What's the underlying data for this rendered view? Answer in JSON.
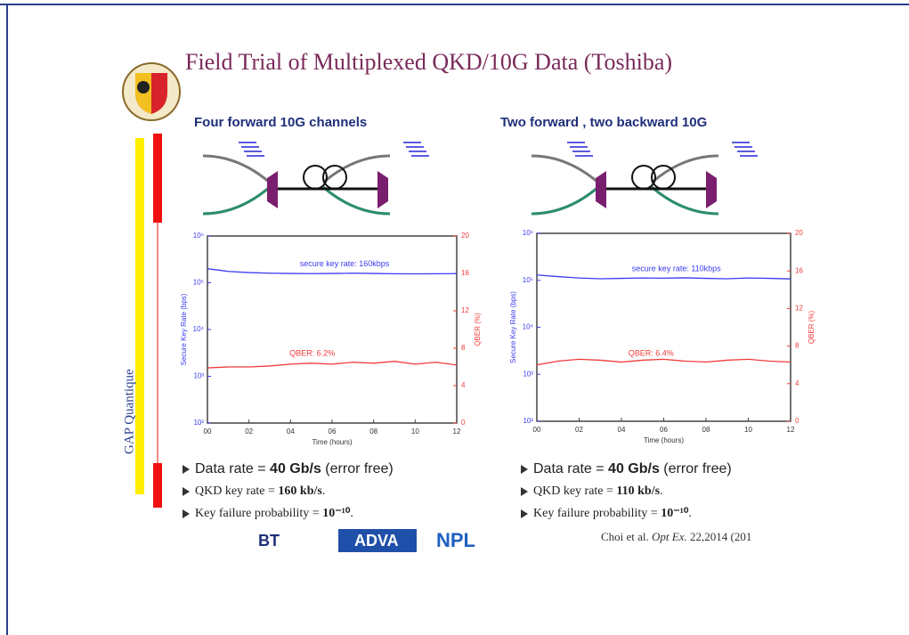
{
  "title": "Field Trial of Multiplexed QKD/10G Data (Toshiba)",
  "side_label": "GAP Quantique",
  "panels": [
    {
      "heading": "Four forward 10G channels",
      "bullets": [
        [
          {
            "text": "Data rate = "
          },
          {
            "text": "40 Gb/s",
            "bold": true
          },
          {
            "text": " (error free)"
          }
        ],
        [
          {
            "text": "QKD key rate = "
          },
          {
            "text": "160 kb/s",
            "bold": true
          },
          {
            "text": "."
          }
        ],
        [
          {
            "text": "Key failure probability = "
          },
          {
            "text": "10⁻¹⁰",
            "bold": true
          },
          {
            "text": "."
          }
        ]
      ]
    },
    {
      "heading": "Two forward , two backward 10G",
      "bullets": [
        [
          {
            "text": "Data rate = "
          },
          {
            "text": "40 Gb/s",
            "bold": true
          },
          {
            "text": " (error free)"
          }
        ],
        [
          {
            "text": "QKD key rate = "
          },
          {
            "text": "110 kb/s",
            "bold": true
          },
          {
            "text": "."
          }
        ],
        [
          {
            "text": "Key failure probability = "
          },
          {
            "text": "10⁻¹⁰",
            "bold": true
          },
          {
            "text": "."
          }
        ]
      ]
    }
  ],
  "logos": [
    "BT",
    "ADVA",
    "NPL"
  ],
  "citation": [
    {
      "text": "Choi et al. "
    },
    {
      "text": "Opt Ex.",
      "italic": true
    },
    {
      "text": " 22,2014 (201"
    }
  ],
  "chart_data": [
    {
      "type": "line",
      "xlabel": "Time (hours)",
      "ylabel": "Secure Key Rate (bps)",
      "y2label": "QBER (%)",
      "x": [
        0,
        1,
        2,
        3,
        4,
        5,
        6,
        7,
        8,
        9,
        10,
        11,
        12
      ],
      "series": [
        {
          "color": "#3b3bf0",
          "values": [
            200000,
            175000,
            165000,
            160000,
            158000,
            157000,
            158000,
            160000,
            158000,
            156000,
            155000,
            156000,
            157000
          ]
        },
        {
          "color": "#f03b3b",
          "axis": "y2",
          "values": [
            5.9,
            6.0,
            6.0,
            6.1,
            6.3,
            6.4,
            6.3,
            6.5,
            6.4,
            6.6,
            6.3,
            6.5,
            6.2
          ]
        }
      ],
      "xlim": [
        0,
        12
      ],
      "xticks": [
        {
          "value": 0,
          "label": "00"
        },
        {
          "value": 2,
          "label": "02"
        },
        {
          "value": 4,
          "label": "04"
        },
        {
          "value": 6,
          "label": "06"
        },
        {
          "value": 8,
          "label": "08"
        },
        10,
        12
      ],
      "ylim": [
        100,
        1000000
      ],
      "ylog": true,
      "yticks": [
        {
          "value": 100,
          "label": "10²"
        },
        {
          "value": 1000,
          "label": "10³"
        },
        {
          "value": 10000,
          "label": "10⁴"
        },
        {
          "value": 100000,
          "label": "10⁵"
        },
        {
          "value": 1000000,
          "label": "10⁶"
        }
      ],
      "y2lim": [
        0,
        20
      ],
      "y2ticks": [
        0,
        4,
        8,
        12,
        16,
        20
      ],
      "annotations": [
        "secure key rate: 160kbps",
        "QBER: 6.2%"
      ]
    },
    {
      "type": "line",
      "xlabel": "Time (hours)",
      "ylabel": "Secure Key Rate (bps)",
      "y2label": "QBER (%)",
      "x": [
        0,
        1,
        2,
        3,
        4,
        5,
        6,
        7,
        8,
        9,
        10,
        11,
        12
      ],
      "series": [
        {
          "color": "#3b3bf0",
          "values": [
            130000,
            120000,
            112000,
            108000,
            110000,
            112000,
            111000,
            113000,
            110000,
            108000,
            112000,
            110000,
            107000
          ]
        },
        {
          "color": "#f03b3b",
          "axis": "y2",
          "values": [
            6.0,
            6.4,
            6.6,
            6.5,
            6.3,
            6.5,
            6.6,
            6.4,
            6.3,
            6.5,
            6.6,
            6.4,
            6.3
          ]
        }
      ],
      "xlim": [
        0,
        12
      ],
      "xticks": [
        {
          "value": 0,
          "label": "00"
        },
        {
          "value": 2,
          "label": "02"
        },
        {
          "value": 4,
          "label": "04"
        },
        {
          "value": 6,
          "label": "06"
        },
        {
          "value": 8,
          "label": "08"
        },
        10,
        12
      ],
      "ylim": [
        100,
        1000000
      ],
      "ylog": true,
      "yticks": [
        {
          "value": 100,
          "label": "10²"
        },
        {
          "value": 1000,
          "label": "10³"
        },
        {
          "value": 10000,
          "label": "10⁴"
        },
        {
          "value": 100000,
          "label": "10⁵"
        },
        {
          "value": 1000000,
          "label": "10⁶"
        }
      ],
      "y2lim": [
        0,
        20
      ],
      "y2ticks": [
        0,
        4,
        8,
        12,
        16,
        20
      ],
      "annotations": [
        "secure key rate: 110kbps",
        "QBER: 6.4%"
      ]
    }
  ]
}
